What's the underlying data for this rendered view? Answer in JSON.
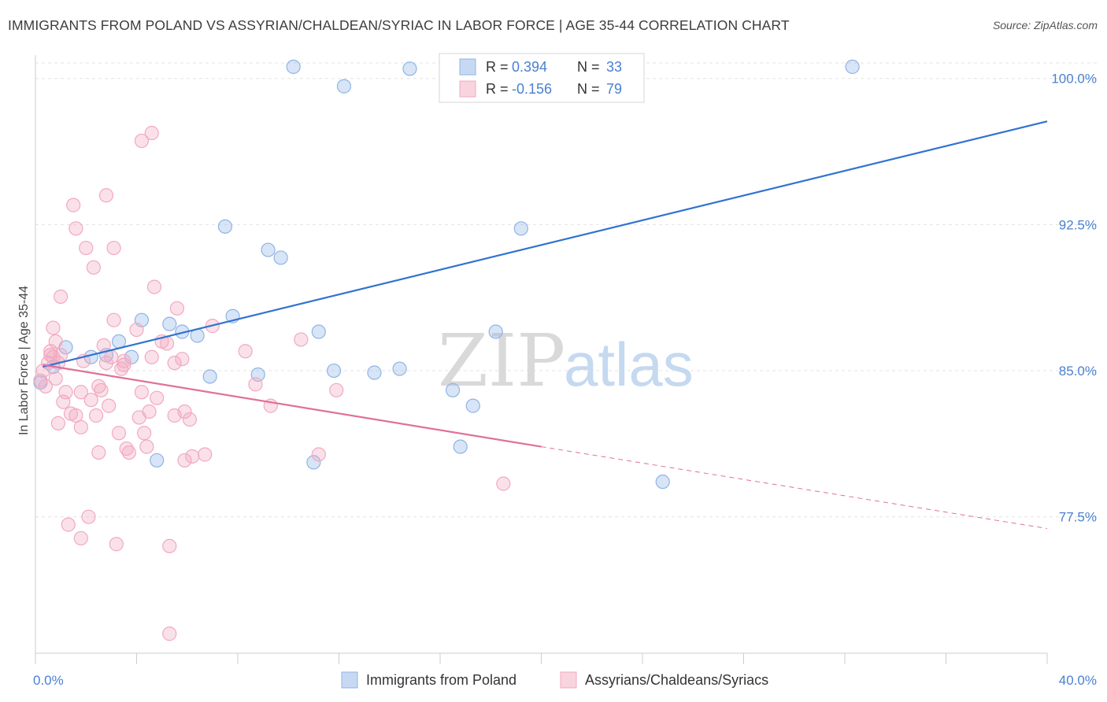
{
  "title": "IMMIGRANTS FROM POLAND VS ASSYRIAN/CHALDEAN/SYRIAC IN LABOR FORCE | AGE 35-44 CORRELATION CHART",
  "source": "Source: ZipAtlas.com",
  "watermark": {
    "zip": "ZIP",
    "atlas": "atlas"
  },
  "colors": {
    "blue": "#8fb4e6",
    "blue_line": "#2f73d0",
    "pink": "#f2a9c0",
    "pink_line": "#e0709a",
    "axis_text": "#4a80d0",
    "grid": "#e3e3e3"
  },
  "legend": {
    "r_label": "R =",
    "n_label": "N =",
    "rows": [
      {
        "r": "0.394",
        "n": "33",
        "color": "blue"
      },
      {
        "r": "-0.156",
        "n": "79",
        "color": "pink"
      }
    ]
  },
  "bottom_legend": [
    {
      "label": "Immigrants from Poland",
      "color": "blue"
    },
    {
      "label": "Assyrians/Chaldeans/Syriacs",
      "color": "pink"
    }
  ],
  "chart_data": {
    "type": "scatter",
    "xlabel": "",
    "ylabel": "In Labor Force | Age 35-44",
    "xlim": [
      0,
      40
    ],
    "ylim": [
      70.5,
      101.2
    ],
    "x_tick_labels": [
      {
        "value": 0,
        "label": "0.0%"
      },
      {
        "value": 40,
        "label": "40.0%"
      }
    ],
    "y_tick_labels": [
      {
        "value": 100,
        "label": "100.0%"
      },
      {
        "value": 92.5,
        "label": "92.5%"
      },
      {
        "value": 85,
        "label": "85.0%"
      },
      {
        "value": 77.5,
        "label": "77.5%"
      }
    ],
    "grid": true,
    "series": [
      {
        "name": "Immigrants from Poland",
        "color": "blue",
        "points": [
          [
            0.2,
            84.4
          ],
          [
            0.7,
            85.2
          ],
          [
            1.2,
            86.2
          ],
          [
            2.2,
            85.7
          ],
          [
            2.8,
            85.8
          ],
          [
            3.3,
            86.5
          ],
          [
            3.8,
            85.7
          ],
          [
            4.2,
            87.6
          ],
          [
            4.8,
            80.4
          ],
          [
            5.3,
            87.4
          ],
          [
            5.8,
            87.0
          ],
          [
            6.4,
            86.8
          ],
          [
            6.9,
            84.7
          ],
          [
            7.5,
            92.4
          ],
          [
            7.8,
            87.8
          ],
          [
            8.8,
            84.8
          ],
          [
            9.2,
            91.2
          ],
          [
            9.7,
            90.8
          ],
          [
            10.2,
            100.6
          ],
          [
            11.0,
            80.3
          ],
          [
            11.2,
            87.0
          ],
          [
            11.8,
            85.0
          ],
          [
            12.2,
            99.6
          ],
          [
            13.4,
            84.9
          ],
          [
            14.4,
            85.1
          ],
          [
            14.8,
            100.5
          ],
          [
            16.5,
            84.0
          ],
          [
            16.8,
            81.1
          ],
          [
            17.3,
            83.2
          ],
          [
            18.2,
            87.0
          ],
          [
            19.2,
            92.3
          ],
          [
            24.8,
            79.3
          ],
          [
            32.3,
            100.6
          ]
        ]
      },
      {
        "name": "Assyrians/Chaldeans/Syriacs",
        "color": "pink",
        "points": [
          [
            0.2,
            84.5
          ],
          [
            0.3,
            85.0
          ],
          [
            0.4,
            84.2
          ],
          [
            0.5,
            85.4
          ],
          [
            0.6,
            85.8
          ],
          [
            0.6,
            86.0
          ],
          [
            0.7,
            85.7
          ],
          [
            0.7,
            87.2
          ],
          [
            0.8,
            86.5
          ],
          [
            0.8,
            84.6
          ],
          [
            0.9,
            82.3
          ],
          [
            0.9,
            85.4
          ],
          [
            1.0,
            88.8
          ],
          [
            1.0,
            85.8
          ],
          [
            1.1,
            83.4
          ],
          [
            1.2,
            83.9
          ],
          [
            1.3,
            77.1
          ],
          [
            1.4,
            82.8
          ],
          [
            1.5,
            93.5
          ],
          [
            1.6,
            82.7
          ],
          [
            1.6,
            92.3
          ],
          [
            1.8,
            82.1
          ],
          [
            1.8,
            83.9
          ],
          [
            1.8,
            76.4
          ],
          [
            1.9,
            85.5
          ],
          [
            2.0,
            91.3
          ],
          [
            2.1,
            77.5
          ],
          [
            2.2,
            83.5
          ],
          [
            2.3,
            90.3
          ],
          [
            2.4,
            82.7
          ],
          [
            2.5,
            84.2
          ],
          [
            2.5,
            80.8
          ],
          [
            2.6,
            84.0
          ],
          [
            2.7,
            86.3
          ],
          [
            2.8,
            85.4
          ],
          [
            2.8,
            94.0
          ],
          [
            2.9,
            83.2
          ],
          [
            3.0,
            85.7
          ],
          [
            3.1,
            87.6
          ],
          [
            3.1,
            91.3
          ],
          [
            3.2,
            76.1
          ],
          [
            3.3,
            81.8
          ],
          [
            3.4,
            85.1
          ],
          [
            3.5,
            85.5
          ],
          [
            3.5,
            85.3
          ],
          [
            3.6,
            81.0
          ],
          [
            3.7,
            80.8
          ],
          [
            4.0,
            87.1
          ],
          [
            4.1,
            82.6
          ],
          [
            4.2,
            96.8
          ],
          [
            4.2,
            83.9
          ],
          [
            4.3,
            81.8
          ],
          [
            4.4,
            81.1
          ],
          [
            4.5,
            82.9
          ],
          [
            4.6,
            85.7
          ],
          [
            4.6,
            97.2
          ],
          [
            4.7,
            89.3
          ],
          [
            4.8,
            83.6
          ],
          [
            5.0,
            86.5
          ],
          [
            5.2,
            86.4
          ],
          [
            5.3,
            76.0
          ],
          [
            5.3,
            71.5
          ],
          [
            5.5,
            82.7
          ],
          [
            5.5,
            85.4
          ],
          [
            5.6,
            88.2
          ],
          [
            5.8,
            85.6
          ],
          [
            5.9,
            82.9
          ],
          [
            5.9,
            80.4
          ],
          [
            6.1,
            82.5
          ],
          [
            6.2,
            80.6
          ],
          [
            6.7,
            80.7
          ],
          [
            7.0,
            87.3
          ],
          [
            8.3,
            86.0
          ],
          [
            8.7,
            84.3
          ],
          [
            9.3,
            83.2
          ],
          [
            10.5,
            86.6
          ],
          [
            11.2,
            80.7
          ],
          [
            11.9,
            84.0
          ],
          [
            18.5,
            79.2
          ]
        ]
      }
    ],
    "trendlines": [
      {
        "series": "Immigrants from Poland",
        "from": [
          0.3,
          85.2
        ],
        "to": [
          40.0,
          97.8
        ],
        "style": "solid"
      },
      {
        "series": "Assyrians/Chaldeans/Syriacs",
        "from": [
          0.3,
          85.3
        ],
        "to": [
          20.0,
          81.1
        ],
        "style": "solid"
      },
      {
        "series": "Assyrians/Chaldeans/Syriacs",
        "from": [
          20.0,
          81.1
        ],
        "to": [
          40.0,
          76.9
        ],
        "style": "dashed"
      }
    ]
  }
}
